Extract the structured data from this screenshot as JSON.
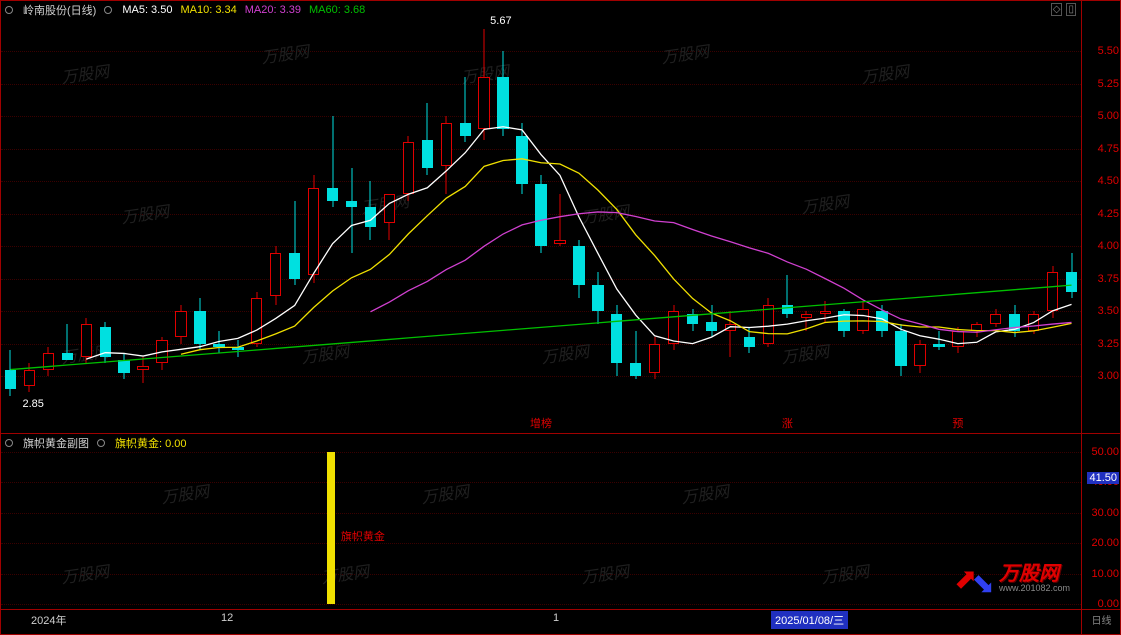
{
  "header": {
    "title": "岭南股份(日线)",
    "ma5_label": "MA5: 3.50",
    "ma10_label": "MA10: 3.34",
    "ma20_label": "MA20: 3.39",
    "ma60_label": "MA60: 3.68"
  },
  "sub_header": {
    "title": "旗帜黄金副图",
    "value_label": "旗帜黄金: 0.00"
  },
  "price_chart": {
    "type": "candlestick",
    "background_color": "#000000",
    "grid_color": "#3a0000",
    "up_color_border": "#e00000",
    "up_color_fill": "#000000",
    "down_color_fill": "#00e0e0",
    "ma5_color": "#ffffff",
    "ma10_color": "#f0e000",
    "ma20_color": "#d040d0",
    "ma60_color": "#00c000",
    "ylim": [
      2.7,
      5.75
    ],
    "ytick_step": 0.25,
    "price_high_label": "5.67",
    "price_low_label": "2.85",
    "candles": [
      {
        "o": 3.05,
        "h": 3.2,
        "l": 2.85,
        "c": 2.9
      },
      {
        "o": 2.92,
        "h": 3.1,
        "l": 2.88,
        "c": 3.05
      },
      {
        "o": 3.05,
        "h": 3.22,
        "l": 3.0,
        "c": 3.18
      },
      {
        "o": 3.18,
        "h": 3.4,
        "l": 3.15,
        "c": 3.12
      },
      {
        "o": 3.15,
        "h": 3.45,
        "l": 3.1,
        "c": 3.4
      },
      {
        "o": 3.38,
        "h": 3.42,
        "l": 3.1,
        "c": 3.15
      },
      {
        "o": 3.12,
        "h": 3.18,
        "l": 2.98,
        "c": 3.02
      },
      {
        "o": 3.05,
        "h": 3.15,
        "l": 2.95,
        "c": 3.08
      },
      {
        "o": 3.1,
        "h": 3.3,
        "l": 3.05,
        "c": 3.28
      },
      {
        "o": 3.3,
        "h": 3.55,
        "l": 3.25,
        "c": 3.5
      },
      {
        "o": 3.5,
        "h": 3.6,
        "l": 3.2,
        "c": 3.25
      },
      {
        "o": 3.25,
        "h": 3.35,
        "l": 3.18,
        "c": 3.22
      },
      {
        "o": 3.22,
        "h": 3.28,
        "l": 3.15,
        "c": 3.2
      },
      {
        "o": 3.25,
        "h": 3.65,
        "l": 3.22,
        "c": 3.6
      },
      {
        "o": 3.62,
        "h": 4.0,
        "l": 3.55,
        "c": 3.95
      },
      {
        "o": 3.95,
        "h": 4.35,
        "l": 3.7,
        "c": 3.75
      },
      {
        "o": 3.78,
        "h": 4.55,
        "l": 3.72,
        "c": 4.45
      },
      {
        "o": 4.45,
        "h": 5.0,
        "l": 4.3,
        "c": 4.35
      },
      {
        "o": 4.35,
        "h": 4.6,
        "l": 3.95,
        "c": 4.3
      },
      {
        "o": 4.3,
        "h": 4.5,
        "l": 4.05,
        "c": 4.15
      },
      {
        "o": 4.18,
        "h": 4.3,
        "l": 4.05,
        "c": 4.4
      },
      {
        "o": 4.4,
        "h": 4.85,
        "l": 4.35,
        "c": 4.8
      },
      {
        "o": 4.82,
        "h": 5.1,
        "l": 4.55,
        "c": 4.6
      },
      {
        "o": 4.62,
        "h": 5.0,
        "l": 4.4,
        "c": 4.95
      },
      {
        "o": 4.95,
        "h": 5.3,
        "l": 4.8,
        "c": 4.85
      },
      {
        "o": 4.9,
        "h": 5.67,
        "l": 4.82,
        "c": 5.3
      },
      {
        "o": 5.3,
        "h": 5.5,
        "l": 4.85,
        "c": 4.9
      },
      {
        "o": 4.85,
        "h": 4.95,
        "l": 4.4,
        "c": 4.48
      },
      {
        "o": 4.48,
        "h": 4.55,
        "l": 3.95,
        "c": 4.0
      },
      {
        "o": 4.02,
        "h": 4.4,
        "l": 4.0,
        "c": 4.05
      },
      {
        "o": 4.0,
        "h": 4.05,
        "l": 3.6,
        "c": 3.7
      },
      {
        "o": 3.7,
        "h": 3.8,
        "l": 3.4,
        "c": 3.5
      },
      {
        "o": 3.48,
        "h": 3.55,
        "l": 3.0,
        "c": 3.1
      },
      {
        "o": 3.1,
        "h": 3.35,
        "l": 2.98,
        "c": 3.0
      },
      {
        "o": 3.02,
        "h": 3.3,
        "l": 2.98,
        "c": 3.25
      },
      {
        "o": 3.25,
        "h": 3.55,
        "l": 3.2,
        "c": 3.5
      },
      {
        "o": 3.48,
        "h": 3.52,
        "l": 3.35,
        "c": 3.4
      },
      {
        "o": 3.42,
        "h": 3.55,
        "l": 3.3,
        "c": 3.35
      },
      {
        "o": 3.35,
        "h": 3.5,
        "l": 3.15,
        "c": 3.4
      },
      {
        "o": 3.3,
        "h": 3.38,
        "l": 3.18,
        "c": 3.22
      },
      {
        "o": 3.25,
        "h": 3.6,
        "l": 3.22,
        "c": 3.55
      },
      {
        "o": 3.55,
        "h": 3.78,
        "l": 3.45,
        "c": 3.48
      },
      {
        "o": 3.45,
        "h": 3.5,
        "l": 3.35,
        "c": 3.48
      },
      {
        "o": 3.48,
        "h": 3.58,
        "l": 3.42,
        "c": 3.5
      },
      {
        "o": 3.5,
        "h": 3.52,
        "l": 3.3,
        "c": 3.35
      },
      {
        "o": 3.35,
        "h": 3.58,
        "l": 3.32,
        "c": 3.52
      },
      {
        "o": 3.5,
        "h": 3.55,
        "l": 3.3,
        "c": 3.35
      },
      {
        "o": 3.35,
        "h": 3.4,
        "l": 3.0,
        "c": 3.08
      },
      {
        "o": 3.08,
        "h": 3.28,
        "l": 3.02,
        "c": 3.25
      },
      {
        "o": 3.25,
        "h": 3.35,
        "l": 3.2,
        "c": 3.22
      },
      {
        "o": 3.22,
        "h": 3.38,
        "l": 3.18,
        "c": 3.35
      },
      {
        "o": 3.35,
        "h": 3.42,
        "l": 3.3,
        "c": 3.4
      },
      {
        "o": 3.4,
        "h": 3.52,
        "l": 3.38,
        "c": 3.48
      },
      {
        "o": 3.48,
        "h": 3.55,
        "l": 3.3,
        "c": 3.35
      },
      {
        "o": 3.35,
        "h": 3.5,
        "l": 3.32,
        "c": 3.48
      },
      {
        "o": 3.5,
        "h": 3.85,
        "l": 3.45,
        "c": 3.8
      },
      {
        "o": 3.8,
        "h": 3.95,
        "l": 3.6,
        "c": 3.65
      }
    ],
    "event_markers": [
      {
        "idx": 28,
        "text": "增榜"
      },
      {
        "idx": 41,
        "text": "涨"
      },
      {
        "idx": 50,
        "text": "预"
      }
    ]
  },
  "sub_chart": {
    "type": "bar",
    "bar_color": "#f0e000",
    "ylim": [
      0,
      50
    ],
    "yticks": [
      0.0,
      10.0,
      20.0,
      30.0,
      40.0,
      50.0
    ],
    "current_value": 41.5,
    "bar_idx": 17,
    "bar_value": 50,
    "bar_label": "旗帜黄金"
  },
  "time_axis": {
    "ticks": [
      {
        "x": 30,
        "label": "2024年"
      },
      {
        "x": 220,
        "label": "12"
      },
      {
        "x": 552,
        "label": "1"
      }
    ],
    "cursor": {
      "x": 770,
      "label": "2025/01/08/三"
    }
  },
  "corner_label": "日线",
  "watermark": {
    "cn": "万股网",
    "url": "www.201082.com"
  },
  "colors": {
    "axis_tick": "#e00000",
    "border": "#a00000",
    "highlight_bg": "#2030c0"
  }
}
